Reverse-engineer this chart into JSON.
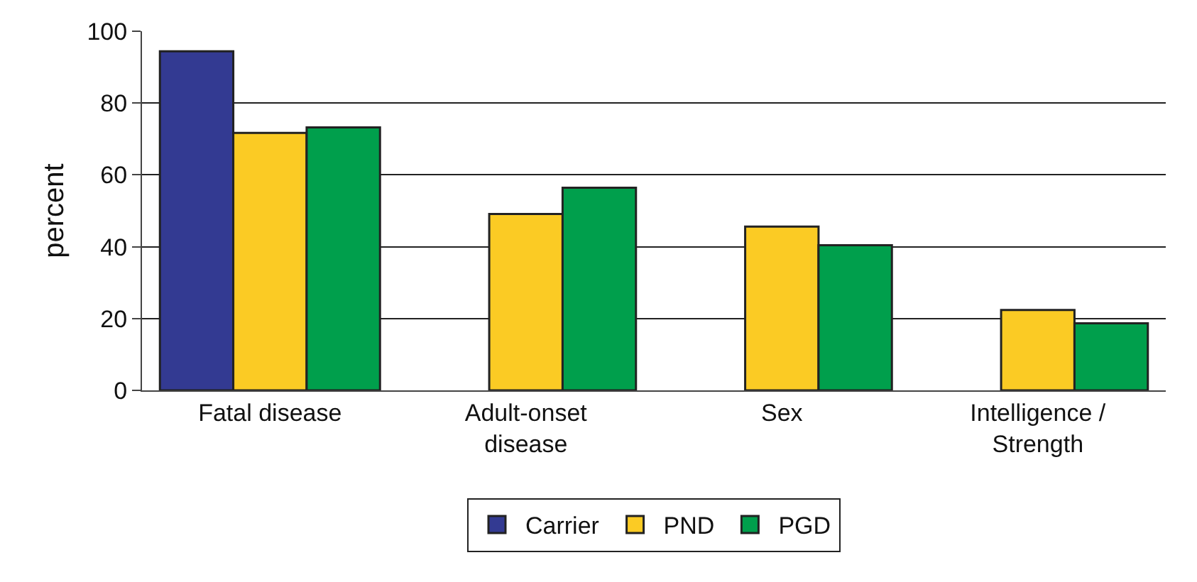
{
  "chart_data": {
    "type": "bar",
    "ylabel": "percent",
    "categories": [
      "Fatal disease",
      "Adult-onset\ndisease",
      "Sex",
      "Intelligence /\nStrength"
    ],
    "series": [
      {
        "name": "Carrier",
        "color": "#333a92",
        "values": [
          94.4,
          null,
          null,
          null
        ]
      },
      {
        "name": "PND",
        "color": "#fbcb24",
        "values": [
          71.7,
          49.1,
          45.6,
          22.4
        ]
      },
      {
        "name": "PGD",
        "color": "#009f4c",
        "values": [
          73.2,
          56.4,
          40.4,
          18.7
        ]
      }
    ],
    "ylim": [
      0,
      100
    ],
    "yticks": [
      0,
      20,
      40,
      60,
      80,
      100
    ],
    "grid": "y",
    "legend": "bottom"
  }
}
